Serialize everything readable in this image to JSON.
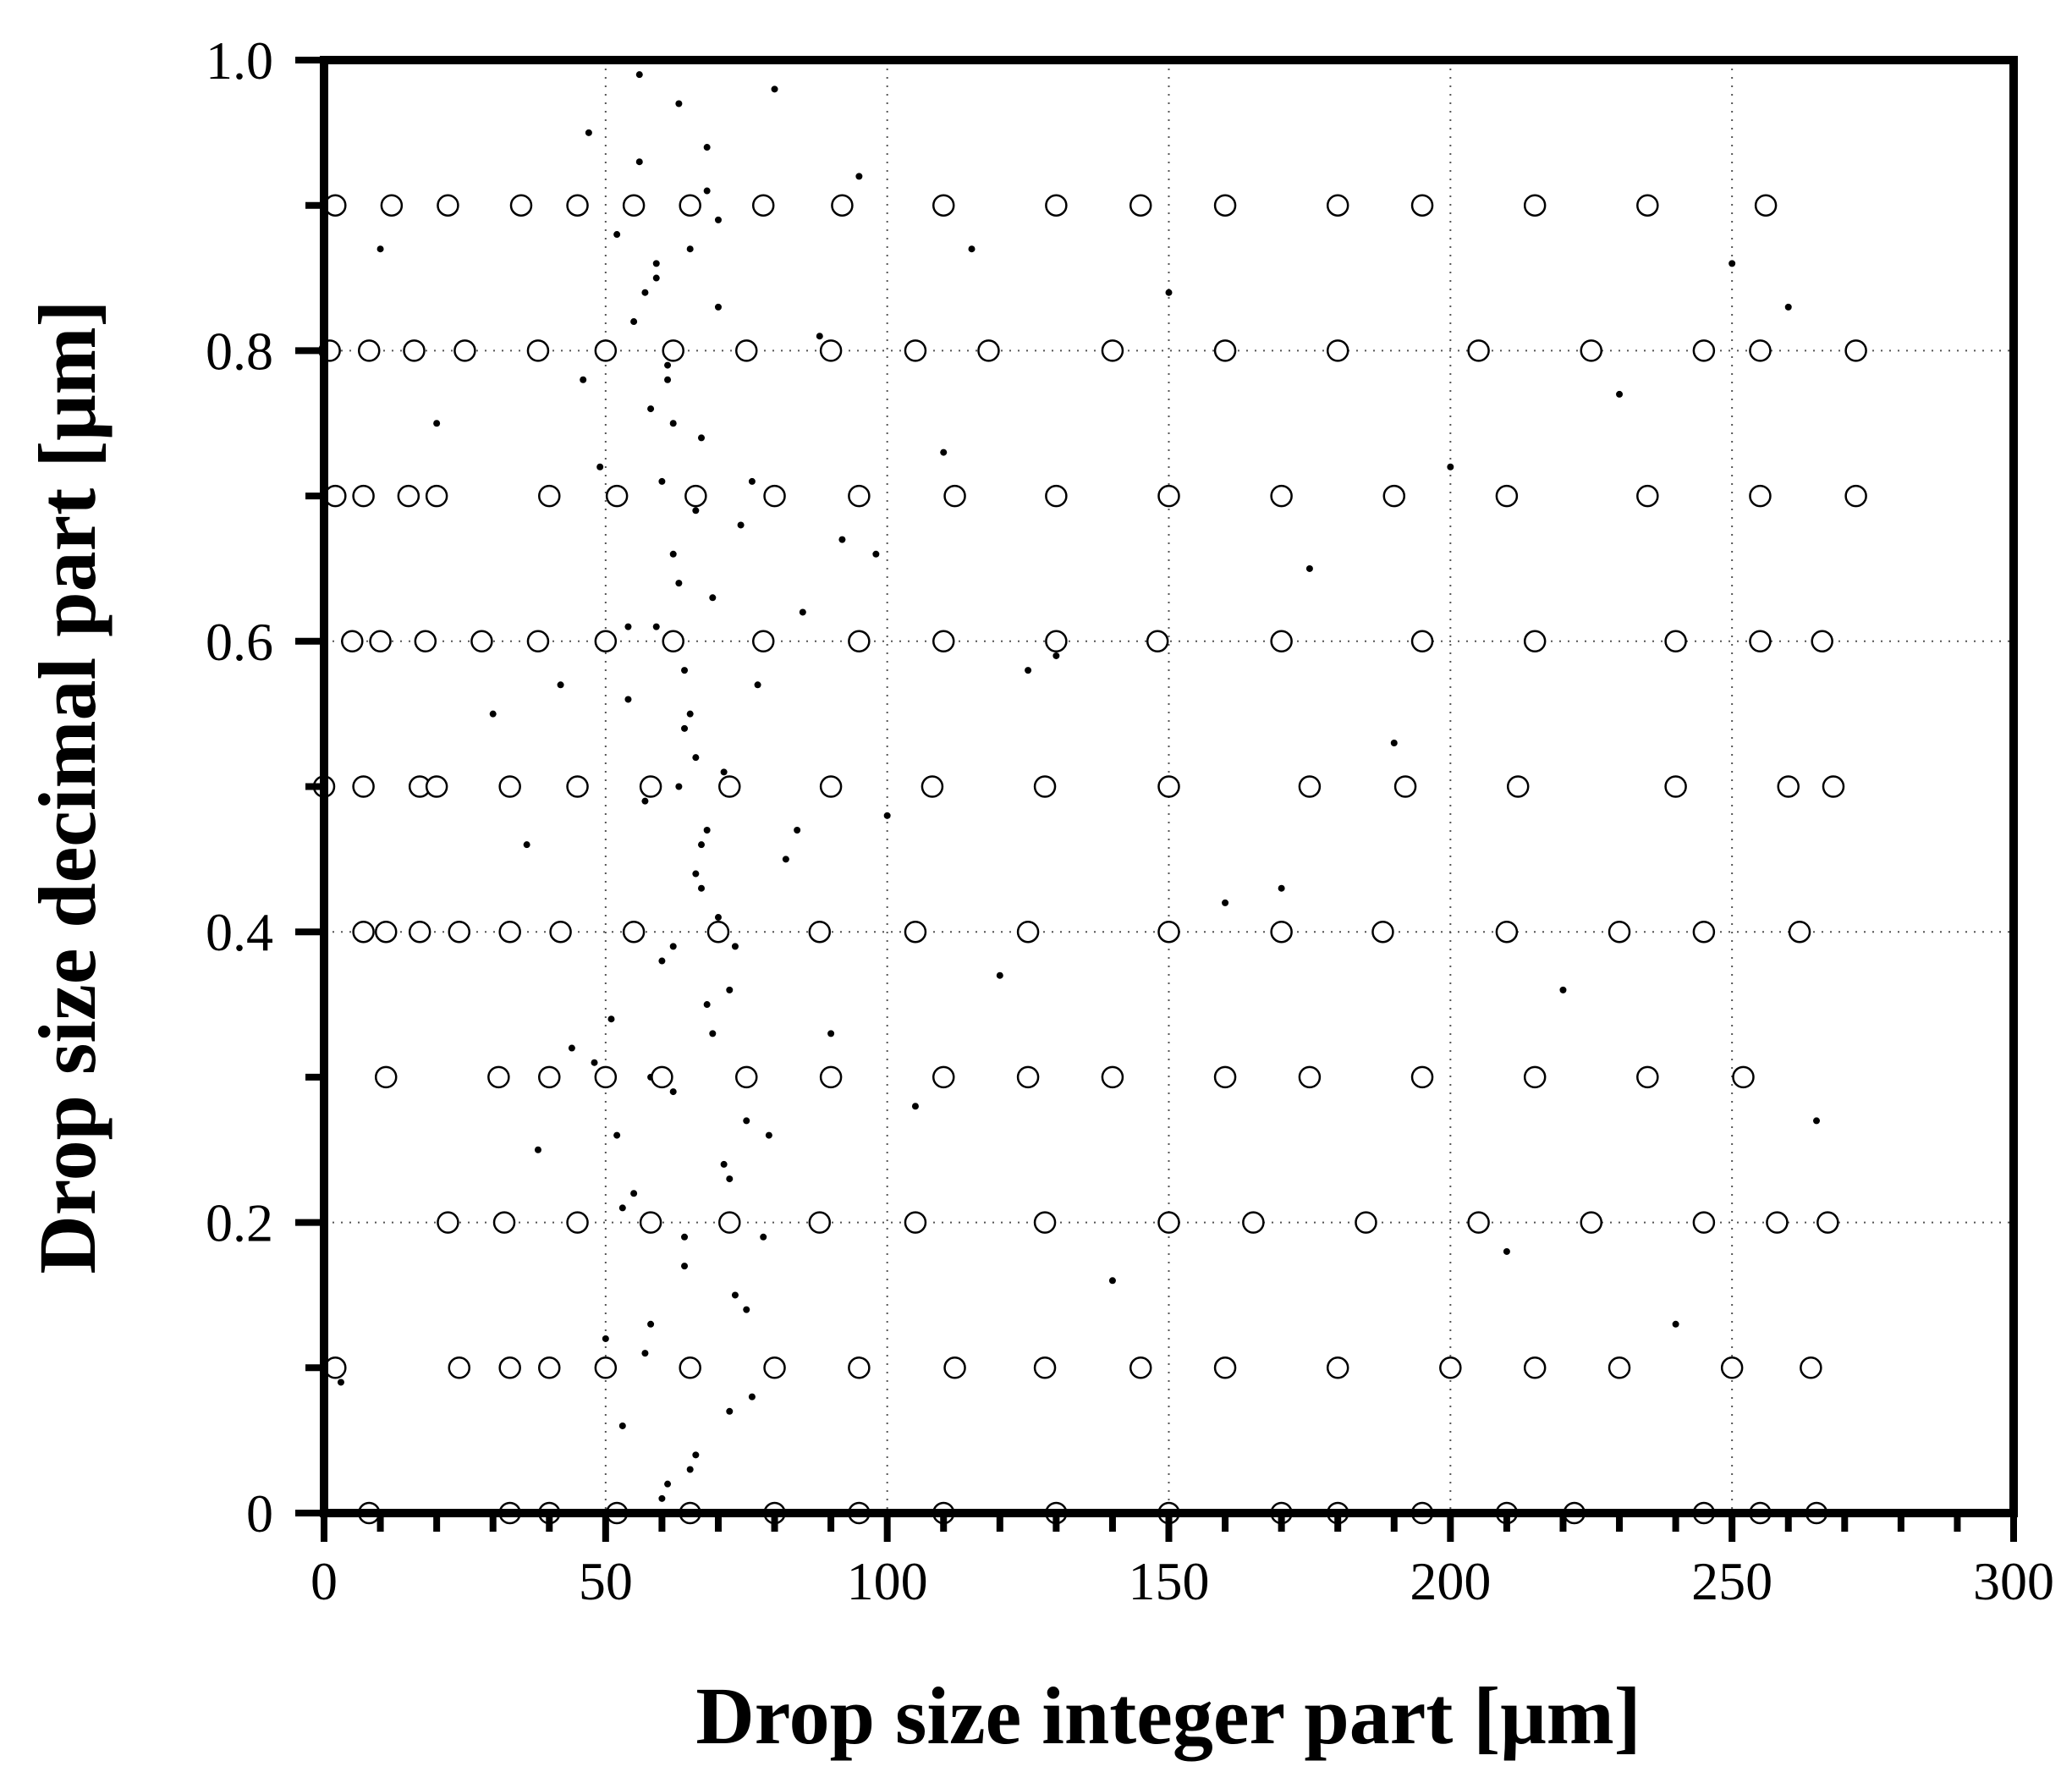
{
  "chart_data": {
    "type": "scatter",
    "xlabel": "Drop size integer part [μm]",
    "ylabel": "Drop size decimal part [μm]",
    "xlim": [
      0,
      300
    ],
    "ylim": [
      0,
      1
    ],
    "xticks": [
      0,
      50,
      100,
      150,
      200,
      250,
      300
    ],
    "yticks": [
      0,
      0.2,
      0.4,
      0.6,
      0.8,
      {
        "value": 1,
        "label": "1.0"
      }
    ],
    "xminorticks": [
      10,
      20,
      30,
      40,
      60,
      70,
      80,
      90,
      110,
      120,
      130,
      140,
      160,
      170,
      180,
      190,
      210,
      220,
      230,
      240,
      260,
      270,
      280,
      290
    ],
    "yminorticks": [
      0.1,
      0.3,
      0.5,
      0.7,
      0.9
    ],
    "grid": true,
    "series": [
      {
        "marker": "dot",
        "color": "#000000",
        "x": [
          47,
          52,
          55,
          58,
          60,
          62,
          64,
          66,
          68,
          70,
          72,
          75,
          78,
          50,
          53,
          56,
          59,
          61,
          63,
          65,
          67,
          69,
          71,
          73,
          76,
          80,
          49,
          54,
          57,
          60,
          62,
          64,
          66,
          68,
          70,
          74,
          77,
          82,
          51,
          55,
          58,
          61,
          63,
          65,
          67,
          69,
          71,
          73,
          79,
          85,
          48,
          53,
          57,
          59,
          62,
          64,
          66,
          68,
          72,
          75,
          88,
          92,
          95,
          100,
          105,
          110,
          120,
          130,
          140,
          150,
          160,
          175,
          190,
          210,
          230,
          250,
          265,
          42,
          44,
          46,
          38,
          36,
          30,
          20,
          10,
          3,
          56,
          60,
          63,
          66,
          58,
          61,
          64,
          67,
          70,
          59,
          62,
          65,
          57,
          54,
          52,
          68,
          72,
          76,
          84,
          90,
          98,
          115,
          125,
          170,
          200,
          220,
          240,
          260
        ],
        "values": [
          0.95,
          0.88,
          0.82,
          0.76,
          0.71,
          0.66,
          0.58,
          0.52,
          0.47,
          0.41,
          0.36,
          0.27,
          0.19,
          0.12,
          0.06,
          0.93,
          0.85,
          0.78,
          0.64,
          0.55,
          0.43,
          0.33,
          0.24,
          0.15,
          0.08,
          0.98,
          0.72,
          0.61,
          0.49,
          0.38,
          0.29,
          0.17,
          0.04,
          0.91,
          0.83,
          0.68,
          0.57,
          0.45,
          0.34,
          0.22,
          0.13,
          0.02,
          0.97,
          0.87,
          0.74,
          0.63,
          0.51,
          0.39,
          0.26,
          0.62,
          0.31,
          0.21,
          0.11,
          0.86,
          0.75,
          0.54,
          0.44,
          0.35,
          0.23,
          0.14,
          0.81,
          0.67,
          0.92,
          0.48,
          0.28,
          0.73,
          0.37,
          0.59,
          0.16,
          0.84,
          0.42,
          0.65,
          0.53,
          0.18,
          0.77,
          0.86,
          0.27,
          0.57,
          0.32,
          0.78,
          0.25,
          0.46,
          0.55,
          0.75,
          0.87,
          0.09,
          0.99,
          0.01,
          0.5,
          0.69,
          0.3,
          0.79,
          0.19,
          0.46,
          0.89,
          0.61,
          0.39,
          0.03,
          0.84,
          0.56,
          0.26,
          0.94,
          0.07,
          0.71,
          0.47,
          0.33,
          0.66,
          0.87,
          0.58,
          0.43,
          0.72,
          0.36,
          0.13,
          0.83
        ]
      },
      {
        "marker": "circle",
        "color": "#000000",
        "x": [
          2,
          12,
          22,
          35,
          45,
          55,
          65,
          78,
          92,
          110,
          130,
          145,
          160,
          180,
          195,
          215,
          235,
          256,
          1,
          8,
          16,
          25,
          38,
          50,
          62,
          75,
          90,
          105,
          118,
          140,
          160,
          180,
          205,
          225,
          245,
          255,
          272,
          2,
          7,
          15,
          20,
          40,
          52,
          66,
          80,
          95,
          112,
          130,
          150,
          170,
          190,
          210,
          235,
          255,
          272,
          5,
          10,
          18,
          28,
          38,
          50,
          62,
          78,
          95,
          110,
          130,
          148,
          170,
          195,
          215,
          240,
          255,
          266,
          0,
          7,
          17,
          20,
          33,
          45,
          58,
          72,
          90,
          108,
          128,
          150,
          175,
          192,
          212,
          240,
          260,
          268,
          7,
          11,
          17,
          24,
          33,
          42,
          55,
          70,
          88,
          105,
          125,
          150,
          170,
          188,
          210,
          230,
          245,
          262,
          11,
          31,
          40,
          50,
          60,
          75,
          90,
          110,
          125,
          140,
          160,
          175,
          195,
          215,
          235,
          252,
          22,
          32,
          45,
          58,
          72,
          88,
          105,
          128,
          150,
          165,
          185,
          205,
          225,
          245,
          258,
          267,
          2,
          24,
          33,
          40,
          50,
          65,
          80,
          95,
          112,
          128,
          145,
          160,
          180,
          200,
          215,
          230,
          250,
          264,
          8,
          33,
          40,
          52,
          65,
          80,
          95,
          110,
          130,
          150,
          170,
          180,
          195,
          210,
          222,
          245,
          255,
          265
        ],
        "values": [
          0.9,
          0.9,
          0.9,
          0.9,
          0.9,
          0.9,
          0.9,
          0.9,
          0.9,
          0.9,
          0.9,
          0.9,
          0.9,
          0.9,
          0.9,
          0.9,
          0.9,
          0.9,
          0.8,
          0.8,
          0.8,
          0.8,
          0.8,
          0.8,
          0.8,
          0.8,
          0.8,
          0.8,
          0.8,
          0.8,
          0.8,
          0.8,
          0.8,
          0.8,
          0.8,
          0.8,
          0.8,
          0.7,
          0.7,
          0.7,
          0.7,
          0.7,
          0.7,
          0.7,
          0.7,
          0.7,
          0.7,
          0.7,
          0.7,
          0.7,
          0.7,
          0.7,
          0.7,
          0.7,
          0.7,
          0.6,
          0.6,
          0.6,
          0.6,
          0.6,
          0.6,
          0.6,
          0.6,
          0.6,
          0.6,
          0.6,
          0.6,
          0.6,
          0.6,
          0.6,
          0.6,
          0.6,
          0.6,
          0.5,
          0.5,
          0.5,
          0.5,
          0.5,
          0.5,
          0.5,
          0.5,
          0.5,
          0.5,
          0.5,
          0.5,
          0.5,
          0.5,
          0.5,
          0.5,
          0.5,
          0.5,
          0.4,
          0.4,
          0.4,
          0.4,
          0.4,
          0.4,
          0.4,
          0.4,
          0.4,
          0.4,
          0.4,
          0.4,
          0.4,
          0.4,
          0.4,
          0.4,
          0.4,
          0.4,
          0.3,
          0.3,
          0.3,
          0.3,
          0.3,
          0.3,
          0.3,
          0.3,
          0.3,
          0.3,
          0.3,
          0.3,
          0.3,
          0.3,
          0.3,
          0.3,
          0.2,
          0.2,
          0.2,
          0.2,
          0.2,
          0.2,
          0.2,
          0.2,
          0.2,
          0.2,
          0.2,
          0.2,
          0.2,
          0.2,
          0.2,
          0.2,
          0.1,
          0.1,
          0.1,
          0.1,
          0.1,
          0.1,
          0.1,
          0.1,
          0.1,
          0.1,
          0.1,
          0.1,
          0.1,
          0.1,
          0.1,
          0.1,
          0.1,
          0.1,
          0,
          0,
          0,
          0,
          0,
          0,
          0,
          0,
          0,
          0,
          0,
          0,
          0,
          0,
          0,
          0,
          0,
          0
        ]
      }
    ]
  }
}
